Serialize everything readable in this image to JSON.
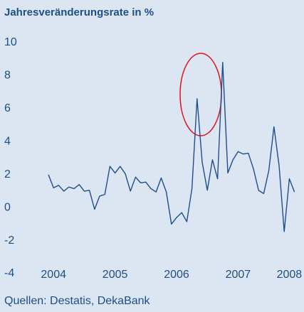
{
  "chart_data": {
    "type": "line",
    "title": "Jahresveränderungsrate in %",
    "source": "Quellen: Destatis, DekaBank",
    "categories": [
      null,
      "2004",
      null,
      null,
      null,
      null,
      null,
      null,
      null,
      null,
      null,
      null,
      null,
      "2005",
      null,
      null,
      null,
      null,
      null,
      null,
      null,
      null,
      null,
      null,
      null,
      "2006",
      null,
      null,
      null,
      null,
      null,
      null,
      null,
      null,
      null,
      null,
      null,
      "2007",
      null,
      null,
      null,
      null,
      null,
      null,
      null,
      null,
      null,
      "2008",
      null
    ],
    "series": [
      {
        "name": "Jahresveränderungsrate",
        "color": "#1f4e8c",
        "values": [
          2.0,
          1.2,
          1.35,
          1.0,
          1.25,
          1.15,
          1.4,
          1.0,
          1.05,
          -0.1,
          0.7,
          0.8,
          2.5,
          2.1,
          2.5,
          2.05,
          1.0,
          1.85,
          1.5,
          1.55,
          1.15,
          0.95,
          1.8,
          0.95,
          -1.0,
          -0.6,
          -0.3,
          -0.85,
          1.15,
          6.6,
          2.75,
          1.05,
          2.9,
          1.75,
          8.8,
          2.1,
          2.9,
          3.4,
          3.25,
          3.3,
          2.35,
          1.05,
          0.85,
          2.25,
          4.9,
          2.55,
          -1.45,
          1.75,
          0.95
        ]
      }
    ],
    "ylim": [
      -4,
      10
    ],
    "yticks": [
      10,
      8,
      6,
      4,
      2,
      0,
      -2,
      -4
    ],
    "grid": false
  }
}
